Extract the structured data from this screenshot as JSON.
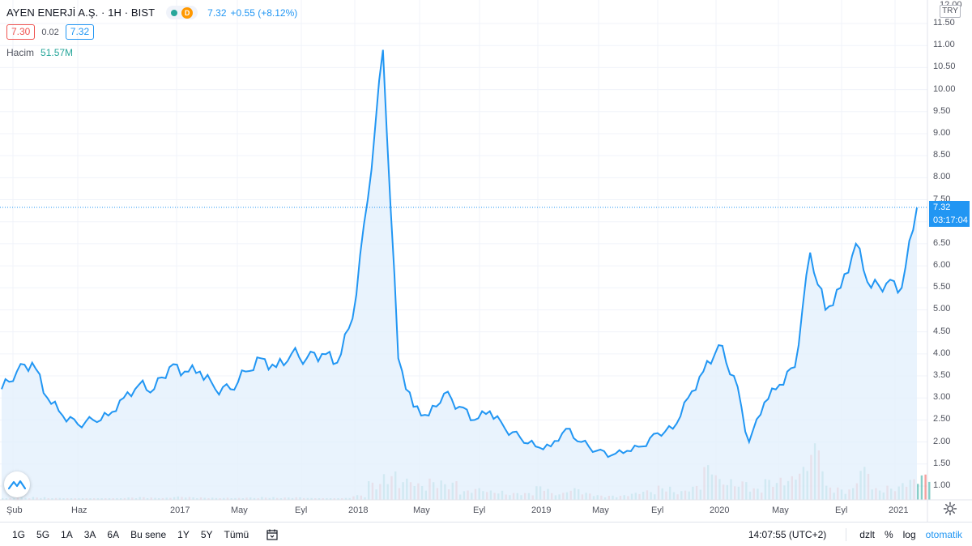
{
  "header": {
    "symbol_title": "AYEN ENERJİ A.Ş. · 1H · BIST",
    "status_delay_letter": "D",
    "last_price": "7.32",
    "change": "+0.55 (+8.12%)",
    "bid": "7.30",
    "spread": "0.02",
    "ask": "7.32",
    "volume_label": "Hacim",
    "volume_value": "51.57M"
  },
  "price_axis": {
    "currency": "TRY",
    "top_label": "12.00",
    "labels": [
      "11.50",
      "11.00",
      "10.50",
      "10.00",
      "9.50",
      "9.00",
      "8.50",
      "8.00",
      "7.50",
      "7.00",
      "6.50",
      "6.00",
      "5.50",
      "5.00",
      "4.50",
      "4.00",
      "3.50",
      "3.00",
      "2.50",
      "2.00",
      "1.50",
      "1.00"
    ],
    "last_price_tag": "7.32",
    "countdown_tag": "03:17:04"
  },
  "time_axis": {
    "labels": [
      "Şub",
      "Haz",
      "2017",
      "May",
      "Eyl",
      "2018",
      "May",
      "Eyl",
      "2019",
      "May",
      "Eyl",
      "2020",
      "May",
      "Eyl",
      "2021"
    ]
  },
  "colors": {
    "line": "#2196f3",
    "area": "#e3f0fc",
    "up_volume": "#26a69a",
    "down_volume": "#ef5350",
    "accent": "#2196f3"
  },
  "chart_data": {
    "type": "area",
    "title": "AYEN ENERJİ A.Ş. · 1H · BIST",
    "xlabel": "",
    "ylabel": "",
    "ylim": [
      0.8,
      12.1
    ],
    "grid": true,
    "x": [
      "2016-02",
      "2016-03",
      "2016-04",
      "2016-05",
      "2016-06",
      "2016-07",
      "2016-08",
      "2016-09",
      "2016-10",
      "2016-11",
      "2016-12",
      "2017-01",
      "2017-02",
      "2017-03",
      "2017-04",
      "2017-05",
      "2017-06",
      "2017-07",
      "2017-08",
      "2017-09",
      "2017-10",
      "2017-11",
      "2017-12",
      "2018-01",
      "2018-02",
      "2018-03",
      "2018-04",
      "2018-05",
      "2018-06",
      "2018-07",
      "2018-08",
      "2018-09",
      "2018-10",
      "2018-11",
      "2018-12",
      "2019-01",
      "2019-02",
      "2019-03",
      "2019-04",
      "2019-05",
      "2019-06",
      "2019-07",
      "2019-08",
      "2019-09",
      "2019-10",
      "2019-11",
      "2019-12",
      "2020-01",
      "2020-02",
      "2020-03",
      "2020-04",
      "2020-05",
      "2020-06",
      "2020-07",
      "2020-08",
      "2020-09",
      "2020-10",
      "2020-11",
      "2020-12",
      "2021-01",
      "2021-02"
    ],
    "series": [
      {
        "values": [
          3.2,
          3.6,
          3.8,
          3.0,
          2.6,
          2.4,
          2.5,
          2.6,
          3.0,
          3.3,
          3.2,
          3.7,
          3.6,
          3.6,
          3.2,
          3.2,
          3.6,
          3.9,
          3.7,
          4.0,
          3.9,
          4.0,
          3.8,
          4.8,
          7.5,
          10.9,
          3.9,
          2.8,
          2.6,
          3.1,
          2.8,
          2.5,
          2.7,
          2.3,
          2.1,
          1.9,
          1.9,
          2.3,
          2.0,
          1.8,
          1.7,
          1.8,
          1.9,
          2.2,
          2.3,
          3.0,
          3.6,
          4.2,
          3.5,
          2.0,
          2.9,
          3.3,
          3.7,
          6.3,
          5.0,
          5.5,
          6.5,
          5.5,
          5.6,
          5.5,
          7.32
        ]
      }
    ],
    "volume_values": [
      0.06,
      0.1,
      0.12,
      0.08,
      0.07,
      0.05,
      0.05,
      0.06,
      0.1,
      0.12,
      0.09,
      0.14,
      0.12,
      0.1,
      0.09,
      0.08,
      0.1,
      0.12,
      0.1,
      0.11,
      0.08,
      0.07,
      0.08,
      0.2,
      0.8,
      1.2,
      0.9,
      0.7,
      0.9,
      0.8,
      0.4,
      0.5,
      0.4,
      0.3,
      0.3,
      0.6,
      0.3,
      0.5,
      0.3,
      0.2,
      0.2,
      0.3,
      0.4,
      0.6,
      0.4,
      0.6,
      1.5,
      0.9,
      0.8,
      0.5,
      0.9,
      1.0,
      1.4,
      2.4,
      0.6,
      0.5,
      1.4,
      0.5,
      0.6,
      0.9,
      1.1
    ]
  },
  "bottom_bar": {
    "ranges": [
      "1G",
      "5G",
      "1A",
      "3A",
      "6A",
      "Bu sene",
      "1Y",
      "5Y",
      "Tümü"
    ],
    "clock": "14:07:55 (UTC+2)",
    "adjust": "dzlt",
    "percent": "%",
    "log": "log",
    "auto": "otomatik"
  }
}
